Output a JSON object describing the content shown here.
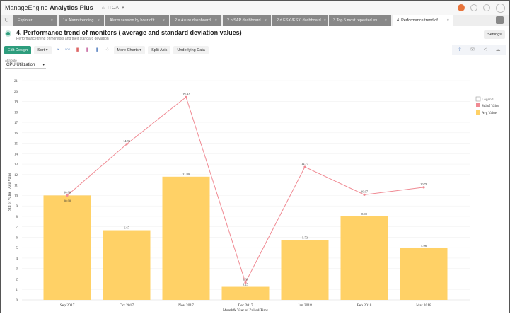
{
  "app": {
    "brand": "ManageEngine",
    "product": "Analytics Plus",
    "workspace": "ITOA"
  },
  "tabs": [
    {
      "label": "Explorer",
      "active": false
    },
    {
      "label": "1a.Alarm trending",
      "active": false
    },
    {
      "label": "Alarm session by hour of t...",
      "active": false
    },
    {
      "label": "2.a Azure dashboard",
      "active": false
    },
    {
      "label": "2.b SAP dashboard",
      "active": false
    },
    {
      "label": "2.d ESXi/ESXi dashboard",
      "active": false
    },
    {
      "label": "3.Top 5 most repeated ev...",
      "active": false
    },
    {
      "label": "4. Performance trend of ...",
      "active": true
    }
  ],
  "report": {
    "title": "4. Performance trend of monitors ( average and standard deviation values)",
    "subtitle": "Performance trend of monitors and their standard deviation",
    "settings": "Settings"
  },
  "toolbar": {
    "edit_design": "Edit Design",
    "sort": "Sort ▾",
    "more_charts": "More Charts ▾",
    "split_axis": "Split Axis",
    "underlying_data": "Underlying Data"
  },
  "filter": {
    "label": "Attribute",
    "value": "CPU Utilization"
  },
  "colors": {
    "accent": "#2d9d7d",
    "bar": "#ffd166",
    "line": "#f08a93"
  },
  "chart_data": {
    "type": "bar+line",
    "categories": [
      "Sep 2017",
      "Oct 2017",
      "Nov 2017",
      "Dec 2017",
      "Jan 2018",
      "Feb 2018",
      "Mar 2018"
    ],
    "series": [
      {
        "name": "Std of Value",
        "type": "line",
        "values": [
          10.0,
          14.91,
          19.42,
          1.66,
          12.73,
          10.07,
          10.78
        ]
      },
      {
        "name": "Avg Value",
        "type": "bar",
        "values": [
          10.0,
          6.67,
          11.8,
          1.25,
          5.73,
          8.0,
          4.96
        ]
      }
    ],
    "xlabel": "Month& Year of Polled Time",
    "ylabel": "Std of Value , Avg Value",
    "ylim": [
      0,
      21
    ],
    "yticks": [
      0,
      1,
      2,
      3,
      4,
      5,
      6,
      7,
      8,
      9,
      10,
      11,
      12,
      13,
      14,
      15,
      16,
      17,
      18,
      19,
      20,
      21
    ],
    "legend": {
      "title": "Legend",
      "position": "top-right"
    },
    "grid": true
  }
}
